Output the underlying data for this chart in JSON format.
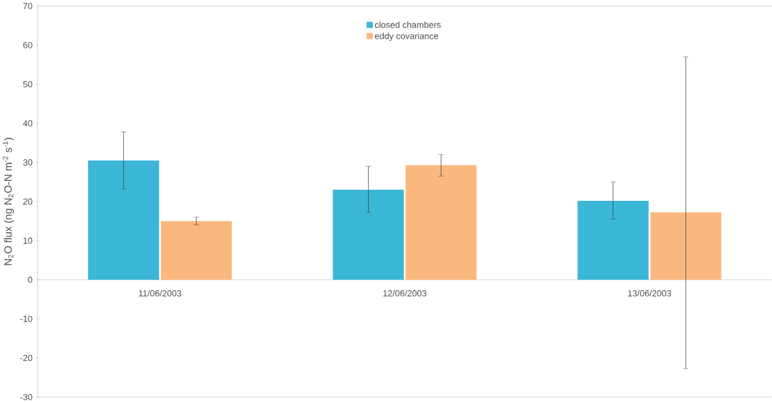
{
  "chart_data": {
    "type": "bar",
    "ylabel": "N$_{2}$O flux (ng N$_{2}$O-N m$^{-2}$ s$^{-1}$)",
    "categories": [
      "11/06/2003",
      "12/06/2003",
      "13/06/2003"
    ],
    "series": [
      {
        "name": "closed chambers",
        "color": "#3bb6d6",
        "values": [
          30.5,
          23,
          20.2
        ],
        "errors": [
          [
            23.2,
            37.8
          ],
          [
            17.2,
            29
          ],
          [
            15.5,
            25
          ]
        ]
      },
      {
        "name": "eddy covariance",
        "color": "#fbb87e",
        "values": [
          15,
          29.3,
          17.2
        ],
        "errors": [
          [
            14,
            16
          ],
          [
            26.5,
            32
          ],
          [
            -22.7,
            57
          ]
        ]
      }
    ],
    "ylim": [
      -30,
      70
    ],
    "yticks": [
      -30,
      -20,
      -10,
      0,
      10,
      20,
      30,
      40,
      50,
      60,
      70
    ],
    "legend": "top"
  }
}
